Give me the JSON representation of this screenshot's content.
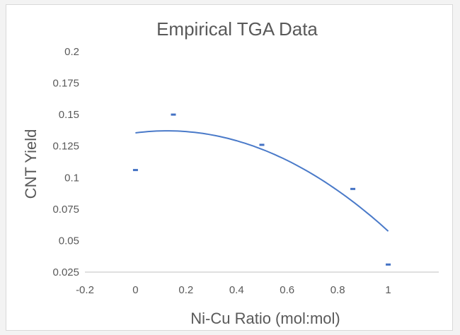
{
  "chart_data": {
    "type": "scatter",
    "title": "Empirical TGA Data",
    "xlabel": "Ni-Cu Ratio (mol:mol)",
    "ylabel": "CNT Yield",
    "xlim": [
      -0.2,
      1.2
    ],
    "ylim": [
      0.025,
      0.2
    ],
    "xticks": [
      -0.2,
      0,
      0.2,
      0.4,
      0.6,
      0.8,
      1
    ],
    "xtick_labels": [
      "-0.2",
      "0",
      "0.2",
      "0.4",
      "0.6",
      "0.8",
      "1"
    ],
    "yticks": [
      0.025,
      0.05,
      0.075,
      0.1,
      0.125,
      0.15,
      0.175,
      0.2
    ],
    "ytick_labels": [
      "0.025",
      "0.05",
      "0.075",
      "0.1",
      "0.125",
      "0.15",
      "0.175",
      "0.2"
    ],
    "grid": false,
    "legend": "none",
    "series": [
      {
        "points": [
          {
            "x": 0,
            "y": 0.106
          },
          {
            "x": 0.15,
            "y": 0.15
          },
          {
            "x": 0.5,
            "y": 0.126
          },
          {
            "x": 0.86,
            "y": 0.091
          },
          {
            "x": 1,
            "y": 0.031
          }
        ],
        "color": "#4472c4"
      }
    ],
    "trendline": {
      "type": "polynomial-2",
      "x_range": [
        0,
        1
      ],
      "coefficients": {
        "a": -0.104,
        "b": 0.026,
        "c": 0.1355
      },
      "color": "#4a7ac9"
    }
  }
}
